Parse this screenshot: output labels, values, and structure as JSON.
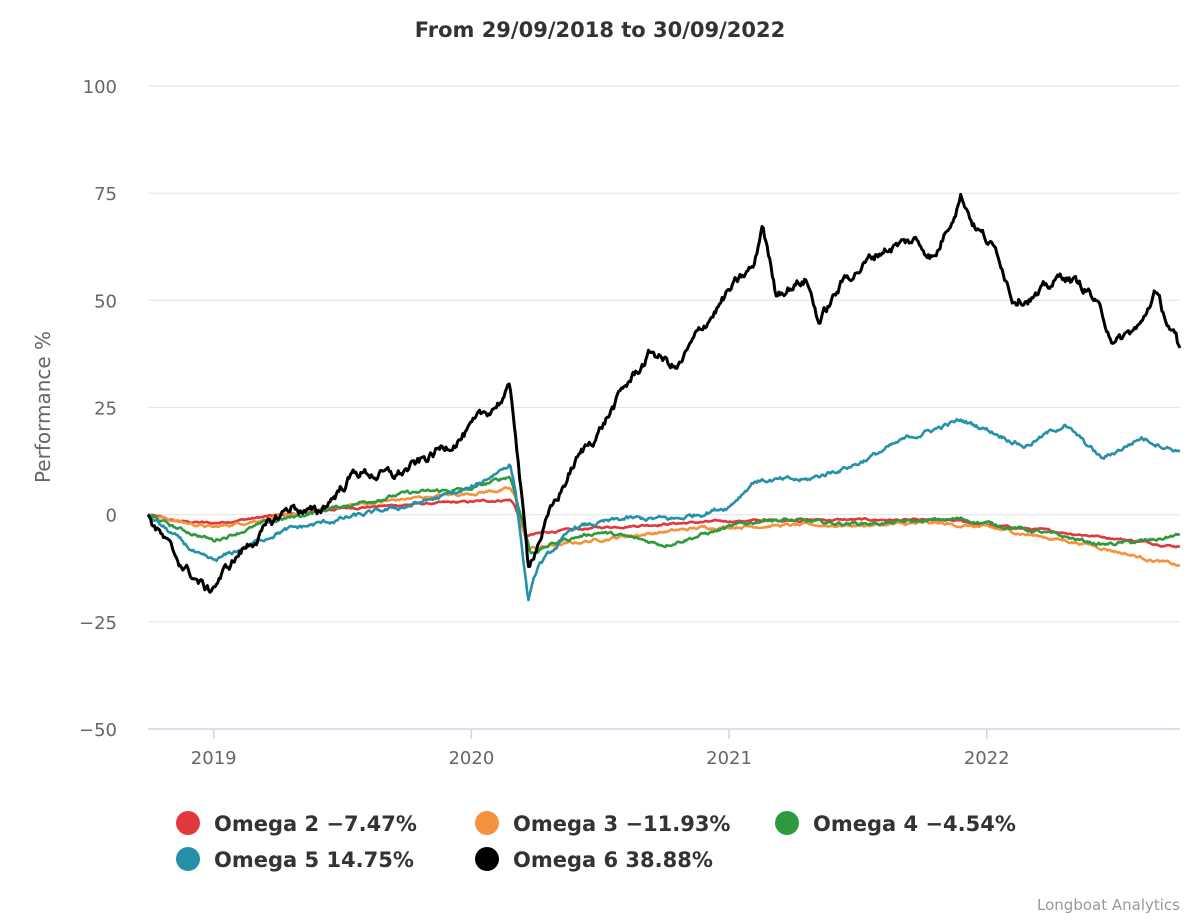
{
  "chart_data": {
    "type": "line",
    "title": "From 29/09/2018 to 30/09/2022",
    "xlabel": "",
    "ylabel": "Performance %",
    "x_range": [
      2018.745,
      2022.75
    ],
    "ylim": [
      -50,
      100
    ],
    "y_ticks": [
      "100",
      "75",
      "50",
      "25",
      "0",
      "−25",
      "−50"
    ],
    "x_ticks": [
      "2019",
      "2020",
      "2021",
      "2022"
    ],
    "grid": true,
    "legend": "bottom",
    "credit": "Longboat Analytics",
    "series": [
      {
        "name": "Omega 2",
        "legend_label": "Omega 2 −7.47%",
        "color": "#e0383c",
        "noise": 0.35,
        "points": [
          [
            2018.745,
            0
          ],
          [
            2018.85,
            -1.5
          ],
          [
            2019.0,
            -2
          ],
          [
            2019.2,
            -0.5
          ],
          [
            2019.5,
            1.5
          ],
          [
            2019.8,
            2.5
          ],
          [
            2020.0,
            3
          ],
          [
            2020.15,
            3.5
          ],
          [
            2020.17,
            2
          ],
          [
            2020.21,
            -5
          ],
          [
            2020.3,
            -4
          ],
          [
            2020.5,
            -3
          ],
          [
            2020.8,
            -2
          ],
          [
            2021.0,
            -1.5
          ],
          [
            2021.3,
            -1.2
          ],
          [
            2021.6,
            -1.2
          ],
          [
            2021.9,
            -1.5
          ],
          [
            2022.0,
            -2.5
          ],
          [
            2022.2,
            -3.5
          ],
          [
            2022.5,
            -5.5
          ],
          [
            2022.75,
            -7.47
          ]
        ]
      },
      {
        "name": "Omega 3",
        "legend_label": "Omega 3 −11.93%",
        "color": "#f5923e",
        "noise": 0.5,
        "points": [
          [
            2018.745,
            0
          ],
          [
            2018.9,
            -2
          ],
          [
            2019.0,
            -3
          ],
          [
            2019.2,
            -1
          ],
          [
            2019.5,
            2
          ],
          [
            2019.8,
            4
          ],
          [
            2020.0,
            5
          ],
          [
            2020.15,
            6
          ],
          [
            2020.17,
            4
          ],
          [
            2020.22,
            -8
          ],
          [
            2020.35,
            -7
          ],
          [
            2020.6,
            -5
          ],
          [
            2020.9,
            -3
          ],
          [
            2021.2,
            -2.5
          ],
          [
            2021.5,
            -2.5
          ],
          [
            2021.8,
            -2
          ],
          [
            2022.0,
            -3
          ],
          [
            2022.2,
            -5
          ],
          [
            2022.4,
            -7
          ],
          [
            2022.6,
            -10
          ],
          [
            2022.75,
            -11.93
          ]
        ]
      },
      {
        "name": "Omega 4",
        "legend_label": "Omega 4 −4.54%",
        "color": "#2e9a3e",
        "noise": 0.6,
        "points": [
          [
            2018.745,
            0
          ],
          [
            2018.85,
            -3
          ],
          [
            2019.0,
            -6
          ],
          [
            2019.2,
            -2
          ],
          [
            2019.5,
            2
          ],
          [
            2019.75,
            5
          ],
          [
            2020.0,
            6
          ],
          [
            2020.15,
            9
          ],
          [
            2020.17,
            5
          ],
          [
            2020.23,
            -9
          ],
          [
            2020.35,
            -6
          ],
          [
            2020.5,
            -4
          ],
          [
            2020.75,
            -7
          ],
          [
            2021.0,
            -3
          ],
          [
            2021.15,
            -1
          ],
          [
            2021.4,
            -2
          ],
          [
            2021.6,
            -2
          ],
          [
            2021.9,
            -1
          ],
          [
            2022.0,
            -2
          ],
          [
            2022.2,
            -4
          ],
          [
            2022.45,
            -7
          ],
          [
            2022.65,
            -6
          ],
          [
            2022.75,
            -4.54
          ]
        ]
      },
      {
        "name": "Omega 5",
        "legend_label": "Omega 5 14.75%",
        "color": "#2590a8",
        "noise": 0.8,
        "points": [
          [
            2018.745,
            0
          ],
          [
            2018.95,
            -10
          ],
          [
            2019.0,
            -11
          ],
          [
            2019.25,
            -4
          ],
          [
            2019.5,
            -1
          ],
          [
            2019.75,
            2
          ],
          [
            2020.0,
            6
          ],
          [
            2020.15,
            12
          ],
          [
            2020.17,
            6
          ],
          [
            2020.22,
            -20
          ],
          [
            2020.26,
            -12
          ],
          [
            2020.4,
            -3
          ],
          [
            2020.6,
            -1
          ],
          [
            2020.8,
            -1
          ],
          [
            2021.0,
            2
          ],
          [
            2021.1,
            8
          ],
          [
            2021.3,
            8
          ],
          [
            2021.5,
            12
          ],
          [
            2021.7,
            18
          ],
          [
            2021.9,
            22
          ],
          [
            2022.0,
            20
          ],
          [
            2022.15,
            16
          ],
          [
            2022.3,
            21
          ],
          [
            2022.45,
            13
          ],
          [
            2022.6,
            18
          ],
          [
            2022.75,
            14.75
          ]
        ]
      },
      {
        "name": "Omega 6",
        "legend_label": "Omega 6 38.88%",
        "color": "#000000",
        "noise": 1.8,
        "points": [
          [
            2018.745,
            0
          ],
          [
            2018.85,
            -10
          ],
          [
            2018.98,
            -18
          ],
          [
            2019.1,
            -9
          ],
          [
            2019.3,
            2
          ],
          [
            2019.4,
            0
          ],
          [
            2019.55,
            10
          ],
          [
            2019.7,
            9
          ],
          [
            2019.8,
            12
          ],
          [
            2020.0,
            20
          ],
          [
            2020.15,
            29
          ],
          [
            2020.17,
            20
          ],
          [
            2020.22,
            -12
          ],
          [
            2020.28,
            -3
          ],
          [
            2020.4,
            12
          ],
          [
            2020.5,
            20
          ],
          [
            2020.6,
            30
          ],
          [
            2020.7,
            38
          ],
          [
            2020.8,
            34
          ],
          [
            2020.9,
            44
          ],
          [
            2021.0,
            52
          ],
          [
            2021.1,
            58
          ],
          [
            2021.13,
            68
          ],
          [
            2021.18,
            52
          ],
          [
            2021.3,
            55
          ],
          [
            2021.35,
            45
          ],
          [
            2021.45,
            55
          ],
          [
            2021.6,
            62
          ],
          [
            2021.72,
            64
          ],
          [
            2021.8,
            60
          ],
          [
            2021.9,
            75
          ],
          [
            2021.95,
            68
          ],
          [
            2022.05,
            60
          ],
          [
            2022.1,
            51
          ],
          [
            2022.2,
            51
          ],
          [
            2022.3,
            56
          ],
          [
            2022.4,
            52
          ],
          [
            2022.5,
            40
          ],
          [
            2022.6,
            44
          ],
          [
            2022.65,
            52
          ],
          [
            2022.7,
            45
          ],
          [
            2022.75,
            38.88
          ]
        ]
      }
    ]
  }
}
